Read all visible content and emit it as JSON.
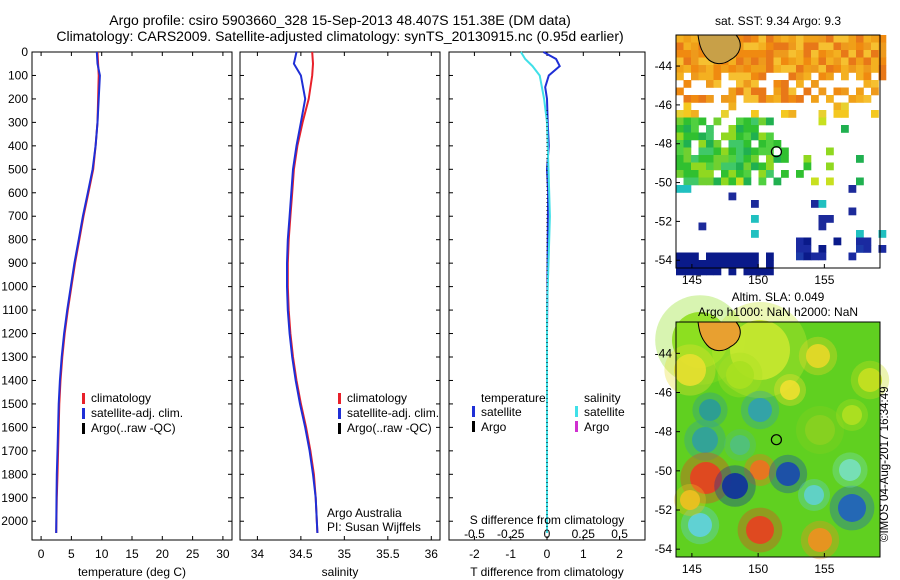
{
  "header": {
    "line1": "Argo profile: csiro 5903660_328 15-Sep-2013 48.407S 151.38E (DM data)",
    "line2": "Climatology: CARS2009. Satellite-adjusted climatology: synTS_20130915.nc (0.95d earlier)"
  },
  "colors": {
    "climatology": "#e8202a",
    "satellite": "#1f2fd6",
    "argo": "#000000",
    "satellite_s": "#40e0e8",
    "argo_s": "#d030d0"
  },
  "chart_data": [
    {
      "type": "line",
      "name": "temperature-panel",
      "xlabel": "temperature (deg C)",
      "ylabel": "",
      "xlim": [
        -1.5,
        31.5
      ],
      "ylim": [
        2080,
        0
      ],
      "xticks": [
        0,
        5,
        10,
        15,
        20,
        25,
        30
      ],
      "yticks": [
        0,
        100,
        200,
        300,
        400,
        500,
        600,
        700,
        800,
        900,
        1000,
        1100,
        1200,
        1300,
        1400,
        1500,
        1600,
        1700,
        1800,
        1900,
        2000
      ],
      "legend": [
        "climatology",
        "satellite-adj. clim.",
        "Argo(..raw -QC)"
      ],
      "series": [
        {
          "name": "climatology",
          "color_key": "climatology",
          "x": [
            9.3,
            9.4,
            9.5,
            9.4,
            9.3,
            9.0,
            8.6,
            7.8,
            7.0,
            6.3,
            5.6,
            5.0,
            4.4,
            3.9,
            3.5,
            3.2,
            3.0,
            2.9,
            2.8,
            2.7,
            2.6,
            2.5
          ],
          "y": [
            0,
            50,
            100,
            200,
            300,
            400,
            500,
            600,
            700,
            800,
            900,
            1000,
            1100,
            1200,
            1300,
            1400,
            1500,
            1600,
            1700,
            1800,
            1900,
            2050
          ]
        },
        {
          "name": "satellite-adj. clim.",
          "color_key": "satellite",
          "x": [
            9.2,
            9.3,
            9.7,
            9.5,
            9.3,
            9.0,
            8.5,
            7.7,
            6.9,
            6.2,
            5.5,
            4.9,
            4.3,
            3.8,
            3.4,
            3.1,
            2.9,
            2.8,
            2.7,
            2.6,
            2.55,
            2.5
          ],
          "y": [
            0,
            50,
            100,
            200,
            300,
            400,
            500,
            600,
            700,
            800,
            900,
            1000,
            1100,
            1200,
            1300,
            1400,
            1500,
            1600,
            1700,
            1800,
            1900,
            2050
          ]
        }
      ]
    },
    {
      "type": "line",
      "name": "salinity-panel",
      "xlabel": "salinity",
      "xlim": [
        33.8,
        36.1
      ],
      "ylim": [
        2080,
        0
      ],
      "xticks": [
        34,
        34.5,
        35,
        35.5,
        36
      ],
      "legend": [
        "climatology",
        "satellite-adj. clim.",
        "Argo(..raw -QC)"
      ],
      "notes": [
        "Argo Australia",
        "PI: Susan Wijffels"
      ],
      "series": [
        {
          "name": "climatology",
          "color_key": "climatology",
          "x": [
            34.63,
            34.64,
            34.63,
            34.59,
            34.52,
            34.46,
            34.42,
            34.4,
            34.38,
            34.36,
            34.35,
            34.35,
            34.36,
            34.38,
            34.41,
            34.45,
            34.5,
            34.56,
            34.61,
            34.65,
            34.67,
            34.69
          ],
          "y": [
            0,
            50,
            100,
            200,
            300,
            400,
            500,
            600,
            700,
            800,
            900,
            1000,
            1100,
            1200,
            1300,
            1400,
            1500,
            1600,
            1700,
            1800,
            1900,
            2050
          ]
        },
        {
          "name": "satellite-adj. clim.",
          "color_key": "satellite",
          "x": [
            34.45,
            34.42,
            34.5,
            34.55,
            34.5,
            34.45,
            34.41,
            34.39,
            34.37,
            34.35,
            34.34,
            34.34,
            34.35,
            34.37,
            34.4,
            34.44,
            34.49,
            34.55,
            34.6,
            34.64,
            34.67,
            34.69
          ],
          "y": [
            0,
            50,
            100,
            200,
            300,
            400,
            500,
            600,
            700,
            800,
            900,
            1000,
            1100,
            1200,
            1300,
            1400,
            1500,
            1600,
            1700,
            1800,
            1900,
            2050
          ]
        }
      ]
    },
    {
      "type": "line",
      "name": "difference-panel",
      "xlabel": "T difference from climatology",
      "toplabel": "S difference from climatology",
      "xlim": [
        -2.7,
        2.7
      ],
      "ylim": [
        2080,
        0
      ],
      "xticks": [
        -2,
        -1,
        0,
        1,
        2
      ],
      "stickslabels": [
        "-0.5",
        "-0.25",
        "0",
        "0.25",
        "0.5"
      ],
      "stickvalues": [
        -0.5,
        -0.25,
        0,
        0.25,
        0.5
      ],
      "legend_t": [
        "temperature",
        "satellite",
        "Argo"
      ],
      "legend_s": [
        "salinity",
        "satellite",
        "Argo"
      ],
      "series": [
        {
          "name": "T satellite",
          "color_key": "satellite",
          "x": [
            -0.1,
            0.25,
            0.35,
            0.05,
            -0.05,
            0.0,
            0.02,
            0.05,
            0.0,
            0.03,
            0.02,
            0.01,
            0.0,
            0.0,
            0.0,
            0.0,
            0.0
          ],
          "y": [
            0,
            30,
            60,
            100,
            150,
            200,
            300,
            400,
            500,
            600,
            800,
            1000,
            1200,
            1400,
            1600,
            1800,
            2050
          ]
        },
        {
          "name": "S satellite",
          "color_key": "satellite_s",
          "x": [
            -0.18,
            -0.15,
            -0.1,
            -0.05,
            -0.02,
            0.0,
            0.01,
            0.02,
            0.01,
            0.0,
            0.0,
            0.0,
            0.0,
            0.0,
            0.0
          ],
          "y": [
            0,
            30,
            60,
            100,
            200,
            300,
            500,
            700,
            900,
            1100,
            1300,
            1500,
            1700,
            1900,
            2050
          ],
          "axis": "salinity"
        }
      ]
    },
    {
      "type": "heatmap",
      "name": "sst-map",
      "title": "sat. SST: 9.34 Argo: 9.3",
      "xticks": [
        145,
        150,
        155
      ],
      "yticks": [
        -44,
        -46,
        -48,
        -50,
        -52,
        -54
      ],
      "xlim": [
        143.8,
        159.2
      ],
      "ylim": [
        -54.4,
        -42.4
      ],
      "argo_position": [
        151.38,
        -48.41
      ]
    },
    {
      "type": "heatmap",
      "name": "sla-map",
      "title1": "Altim. SLA: 0.049",
      "title2": "Argo h1000: NaN h2000: NaN",
      "xticks": [
        145,
        150,
        155
      ],
      "yticks": [
        -44,
        -46,
        -48,
        -50,
        -52,
        -54
      ],
      "xlim": [
        143.8,
        159.2
      ],
      "ylim": [
        -54.4,
        -42.4
      ],
      "argo_position": [
        151.38,
        -48.41
      ]
    }
  ],
  "credit": "©IMOS 04-Aug-2017 16:34:49"
}
